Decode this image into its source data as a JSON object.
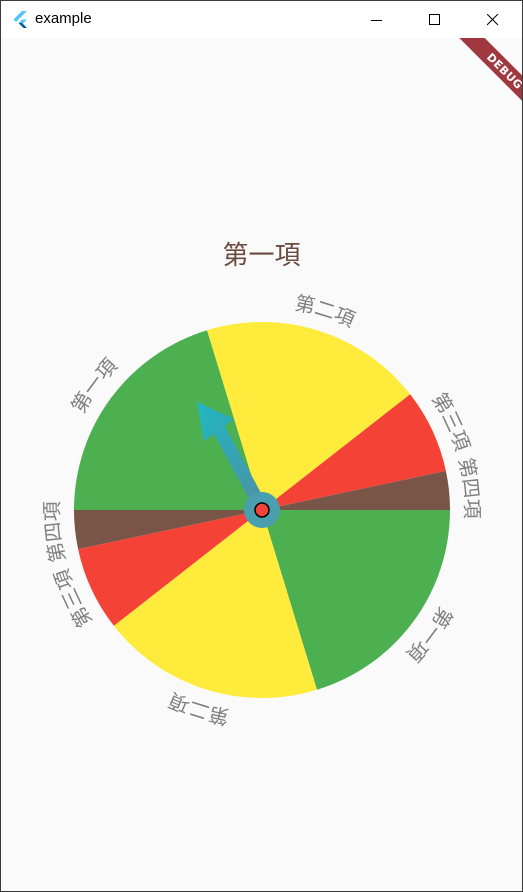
{
  "window": {
    "title": "example"
  },
  "debug_banner": {
    "text": "DEBUG"
  },
  "result_text": "第一項",
  "wheel": {
    "segments": [
      {
        "label": "第一項",
        "color": "#4caf50"
      },
      {
        "label": "第二項",
        "color": "#ffeb3b"
      },
      {
        "label": "第三項",
        "color": "#f44336"
      },
      {
        "label": "第四項",
        "color": "#795548"
      }
    ],
    "label_color": "#808080",
    "pointer_color": "#26a69a",
    "hub_color": "#f44336"
  }
}
